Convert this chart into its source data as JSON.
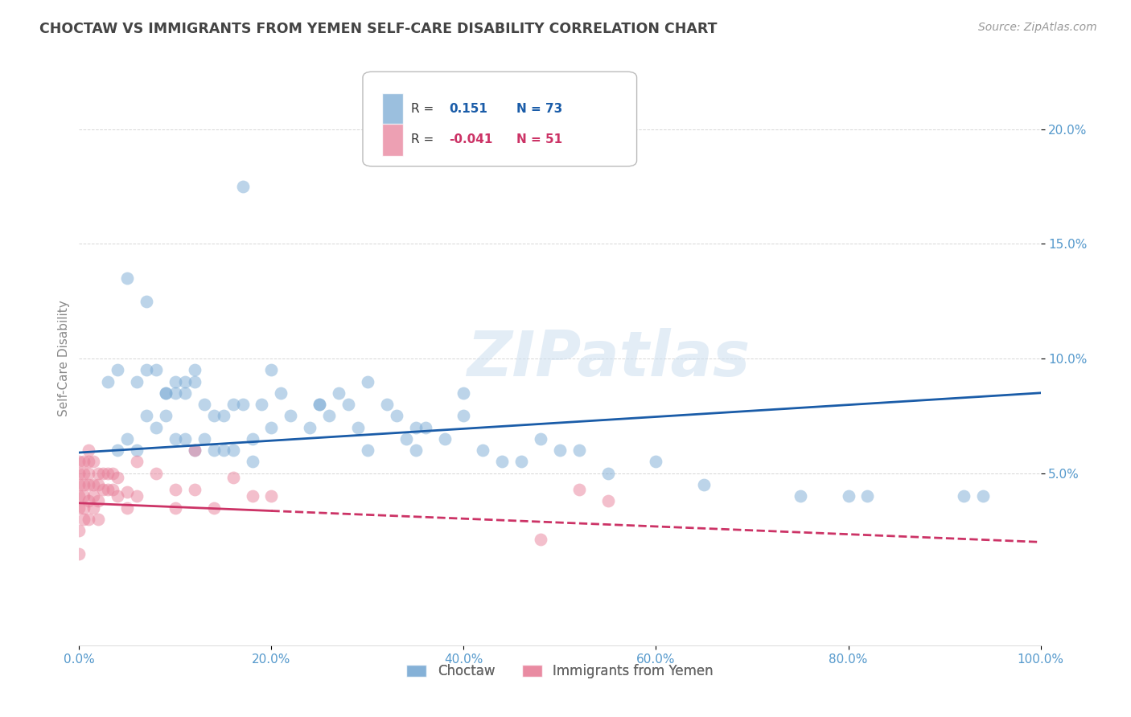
{
  "title": "CHOCTAW VS IMMIGRANTS FROM YEMEN SELF-CARE DISABILITY CORRELATION CHART",
  "source": "Source: ZipAtlas.com",
  "ylabel": "Self-Care Disability",
  "r_choctaw": 0.151,
  "n_choctaw": 73,
  "r_yemen": -0.041,
  "n_yemen": 51,
  "choctaw_color": "#7aaad4",
  "yemen_color": "#e8809a",
  "trend_choctaw_color": "#1a5ca8",
  "trend_yemen_color": "#cc3366",
  "background_color": "#ffffff",
  "grid_color": "#cccccc",
  "title_color": "#444444",
  "axis_label_color": "#5599cc",
  "watermark": "ZIPatlas",
  "xlim": [
    0.0,
    1.0
  ],
  "ylim": [
    -0.025,
    0.225
  ],
  "trend_choctaw_x0": 0.0,
  "trend_choctaw_y0": 0.059,
  "trend_choctaw_x1": 1.0,
  "trend_choctaw_y1": 0.085,
  "trend_yemen_x0": 0.0,
  "trend_yemen_y0": 0.037,
  "trend_yemen_x1": 1.0,
  "trend_yemen_y1": 0.02,
  "trend_yemen_solid_end": 0.2,
  "choctaw_x": [
    0.17,
    0.05,
    0.07,
    0.03,
    0.04,
    0.09,
    0.06,
    0.07,
    0.08,
    0.1,
    0.09,
    0.1,
    0.11,
    0.11,
    0.12,
    0.12,
    0.13,
    0.14,
    0.15,
    0.16,
    0.17,
    0.18,
    0.19,
    0.2,
    0.21,
    0.22,
    0.24,
    0.25,
    0.26,
    0.27,
    0.28,
    0.29,
    0.3,
    0.32,
    0.33,
    0.34,
    0.35,
    0.36,
    0.38,
    0.4,
    0.42,
    0.44,
    0.46,
    0.48,
    0.5,
    0.52,
    0.55,
    0.6,
    0.65,
    0.75,
    0.8,
    0.82,
    0.92,
    0.94,
    0.04,
    0.05,
    0.06,
    0.07,
    0.08,
    0.09,
    0.1,
    0.11,
    0.12,
    0.13,
    0.14,
    0.15,
    0.16,
    0.18,
    0.2,
    0.25,
    0.3,
    0.35,
    0.4
  ],
  "choctaw_y": [
    0.175,
    0.135,
    0.125,
    0.09,
    0.095,
    0.085,
    0.09,
    0.095,
    0.095,
    0.085,
    0.085,
    0.09,
    0.085,
    0.09,
    0.09,
    0.095,
    0.08,
    0.075,
    0.075,
    0.08,
    0.08,
    0.065,
    0.08,
    0.095,
    0.085,
    0.075,
    0.07,
    0.08,
    0.075,
    0.085,
    0.08,
    0.07,
    0.09,
    0.08,
    0.075,
    0.065,
    0.06,
    0.07,
    0.065,
    0.075,
    0.06,
    0.055,
    0.055,
    0.065,
    0.06,
    0.06,
    0.05,
    0.055,
    0.045,
    0.04,
    0.04,
    0.04,
    0.04,
    0.04,
    0.06,
    0.065,
    0.06,
    0.075,
    0.07,
    0.075,
    0.065,
    0.065,
    0.06,
    0.065,
    0.06,
    0.06,
    0.06,
    0.055,
    0.07,
    0.08,
    0.06,
    0.07,
    0.085
  ],
  "yemen_x": [
    0.0,
    0.0,
    0.0,
    0.0,
    0.0,
    0.005,
    0.005,
    0.005,
    0.005,
    0.005,
    0.01,
    0.01,
    0.01,
    0.01,
    0.01,
    0.015,
    0.015,
    0.015,
    0.02,
    0.02,
    0.02,
    0.02,
    0.025,
    0.025,
    0.03,
    0.03,
    0.035,
    0.035,
    0.04,
    0.04,
    0.05,
    0.05,
    0.06,
    0.06,
    0.08,
    0.1,
    0.1,
    0.12,
    0.12,
    0.14,
    0.16,
    0.18,
    0.2,
    0.48,
    0.52,
    0.55,
    0.0,
    0.0,
    0.005,
    0.01,
    0.015
  ],
  "yemen_y": [
    0.055,
    0.05,
    0.045,
    0.04,
    0.035,
    0.055,
    0.05,
    0.045,
    0.04,
    0.035,
    0.06,
    0.055,
    0.05,
    0.045,
    0.038,
    0.055,
    0.045,
    0.04,
    0.05,
    0.045,
    0.038,
    0.03,
    0.05,
    0.043,
    0.05,
    0.043,
    0.05,
    0.043,
    0.048,
    0.04,
    0.042,
    0.035,
    0.055,
    0.04,
    0.05,
    0.043,
    0.035,
    0.06,
    0.043,
    0.035,
    0.048,
    0.04,
    0.04,
    0.021,
    0.043,
    0.038,
    0.025,
    0.015,
    0.03,
    0.03,
    0.035
  ],
  "xtick_labels": [
    "0.0%",
    "20.0%",
    "40.0%",
    "60.0%",
    "80.0%",
    "100.0%"
  ],
  "xtick_positions": [
    0.0,
    0.2,
    0.4,
    0.6,
    0.8,
    1.0
  ],
  "ytick_labels": [
    "5.0%",
    "10.0%",
    "15.0%",
    "20.0%"
  ],
  "ytick_positions": [
    0.05,
    0.1,
    0.15,
    0.2
  ]
}
